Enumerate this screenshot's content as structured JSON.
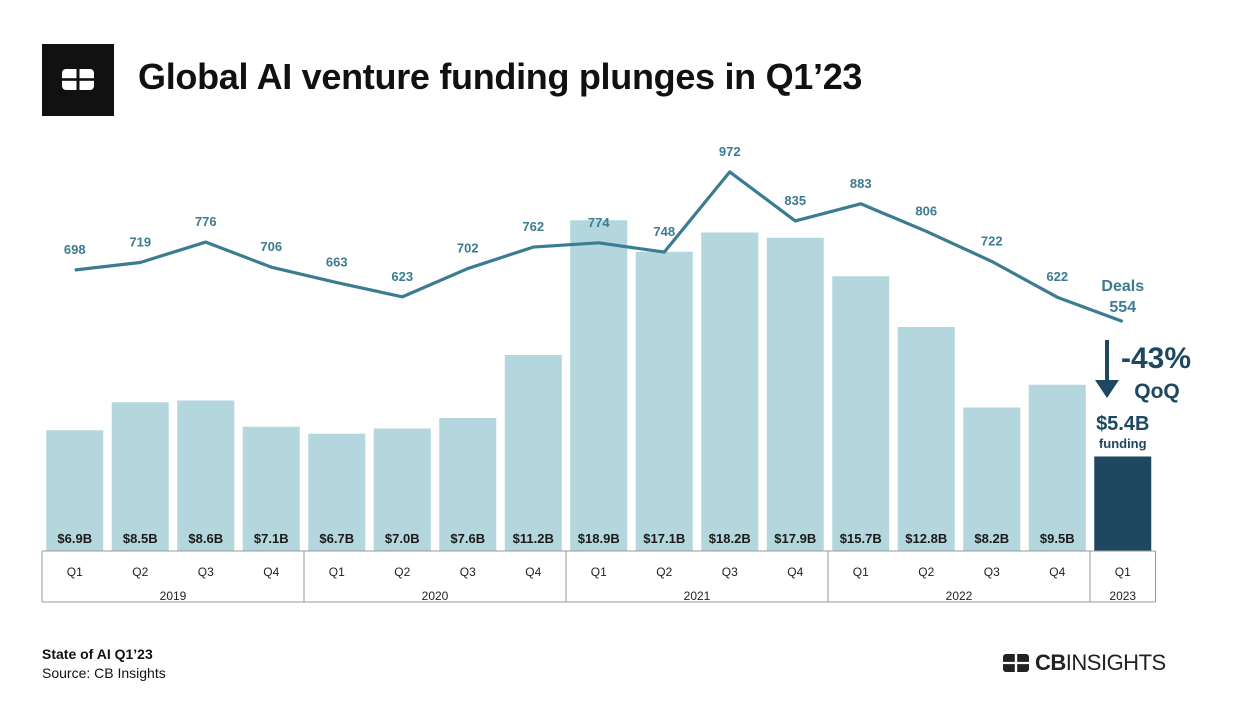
{
  "header": {
    "title": "Global AI venture funding plunges in Q1’23"
  },
  "footer": {
    "report": "State of AI Q1’23",
    "source": "Source: CB Insights"
  },
  "brand": {
    "bold": "CB",
    "rest": "INSIGHTS"
  },
  "colors": {
    "bar": "#b4d7de",
    "highlight_bar": "#1e4760",
    "line": "#3b7c91",
    "label": "#3b7c91",
    "dark": "#1e4760"
  },
  "icons": {
    "header_logo": "cb-logo-icon",
    "brand_logo": "cb-logo-icon"
  },
  "chart_data": {
    "type": "bar",
    "title": "Global AI venture funding plunges in Q1’23",
    "categories": [
      "Q1",
      "Q2",
      "Q3",
      "Q4",
      "Q1",
      "Q2",
      "Q3",
      "Q4",
      "Q1",
      "Q2",
      "Q3",
      "Q4",
      "Q1",
      "Q2",
      "Q3",
      "Q4",
      "Q1"
    ],
    "years": [
      {
        "label": "2019",
        "span": 4
      },
      {
        "label": "2020",
        "span": 4
      },
      {
        "label": "2021",
        "span": 4
      },
      {
        "label": "2022",
        "span": 4
      },
      {
        "label": "2023",
        "span": 1
      }
    ],
    "series": [
      {
        "name": "funding",
        "type": "bar",
        "unit": "$B",
        "values": [
          6.9,
          8.5,
          8.6,
          7.1,
          6.7,
          7.0,
          7.6,
          11.2,
          18.9,
          17.1,
          18.2,
          17.9,
          15.7,
          12.8,
          8.2,
          9.5,
          5.4
        ],
        "labels": [
          "$6.9B",
          "$8.5B",
          "$8.6B",
          "$7.1B",
          "$6.7B",
          "$7.0B",
          "$7.6B",
          "$11.2B",
          "$18.9B",
          "$17.1B",
          "$18.2B",
          "$17.9B",
          "$15.7B",
          "$12.8B",
          "$8.2B",
          "$9.5B",
          ""
        ]
      },
      {
        "name": "Deals",
        "type": "line",
        "values": [
          698,
          719,
          776,
          706,
          663,
          623,
          702,
          762,
          774,
          748,
          972,
          835,
          883,
          806,
          722,
          622,
          554
        ],
        "labels": [
          "698",
          "719",
          "776",
          "706",
          "663",
          "623",
          "702",
          "762",
          "774",
          "748",
          "972",
          "835",
          "883",
          "806",
          "722",
          "622",
          ""
        ]
      }
    ],
    "annotations": {
      "deals_label": "Deals",
      "deals_value": "554",
      "change": "-43%",
      "change_period": "QoQ",
      "funding_value": "$5.4B",
      "funding_label": "funding"
    }
  }
}
